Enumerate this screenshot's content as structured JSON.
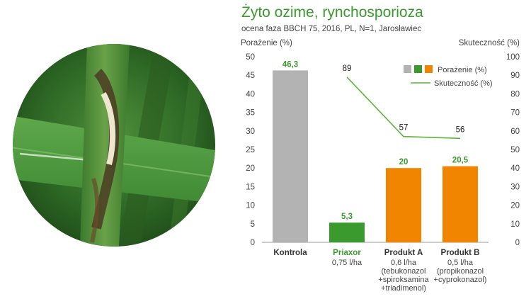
{
  "title": "Żyto ozime, rynchosporioza",
  "subtitle": "ocena faza BBCH 75, 2016, PL, N=1, Jarosławiec",
  "colors": {
    "title_green": "#3a9a2e",
    "kontrola": "#b3b3b3",
    "priaxor": "#3a9a2e",
    "produkt": "#f28500",
    "line": "#5db43b"
  },
  "image": {
    "subject": "rye leaf with rhynchosporium lesions",
    "icon": "leaf-disease-photo"
  },
  "chart_data": {
    "type": "bar",
    "categories": [
      "Kontrola",
      "Priaxor",
      "Produkt A",
      "Produkt B"
    ],
    "category_sublabels": [
      [],
      [
        "0,75 l/ha"
      ],
      [
        "0,6 l/ha",
        "(tebukonazol",
        "+spiroksamina",
        "+triadimenol)"
      ],
      [
        "0,5 l/ha",
        "(propikonazol",
        "+cyprokonazol)"
      ]
    ],
    "series": [
      {
        "name": "Porażenie (%)",
        "type": "bar",
        "axis": "left",
        "values": [
          46.3,
          5.3,
          20,
          20.5
        ],
        "labels": [
          "46,3",
          "5,3",
          "20",
          "20,5"
        ],
        "colors": [
          "#b3b3b3",
          "#3a9a2e",
          "#f28500",
          "#f28500"
        ]
      },
      {
        "name": "Skuteczność (%)",
        "type": "line",
        "axis": "right",
        "values": [
          null,
          89,
          57,
          56
        ],
        "labels": [
          "",
          "89",
          "57",
          "56"
        ],
        "color": "#5db43b"
      }
    ],
    "ylabel_left": "Porażenie (%)",
    "ylabel_right": "Skuteczność (%)",
    "ylim_left": [
      0,
      50
    ],
    "ylim_right": [
      0,
      100
    ],
    "yticks_left": [
      "0",
      "5",
      "10",
      "15",
      "20",
      "25",
      "30",
      "35",
      "40",
      "45",
      "50"
    ],
    "yticks_right": [
      "0",
      "10",
      "20",
      "30",
      "40",
      "50",
      "60",
      "70",
      "80",
      "90",
      "100"
    ],
    "legend": {
      "placement": "top-right",
      "bar_entry": "Porażenie (%)",
      "bar_swatches": [
        "#b3b3b3",
        "#3a9a2e",
        "#f28500"
      ],
      "line_entry": "Skuteczność (%)"
    },
    "grid": false
  }
}
